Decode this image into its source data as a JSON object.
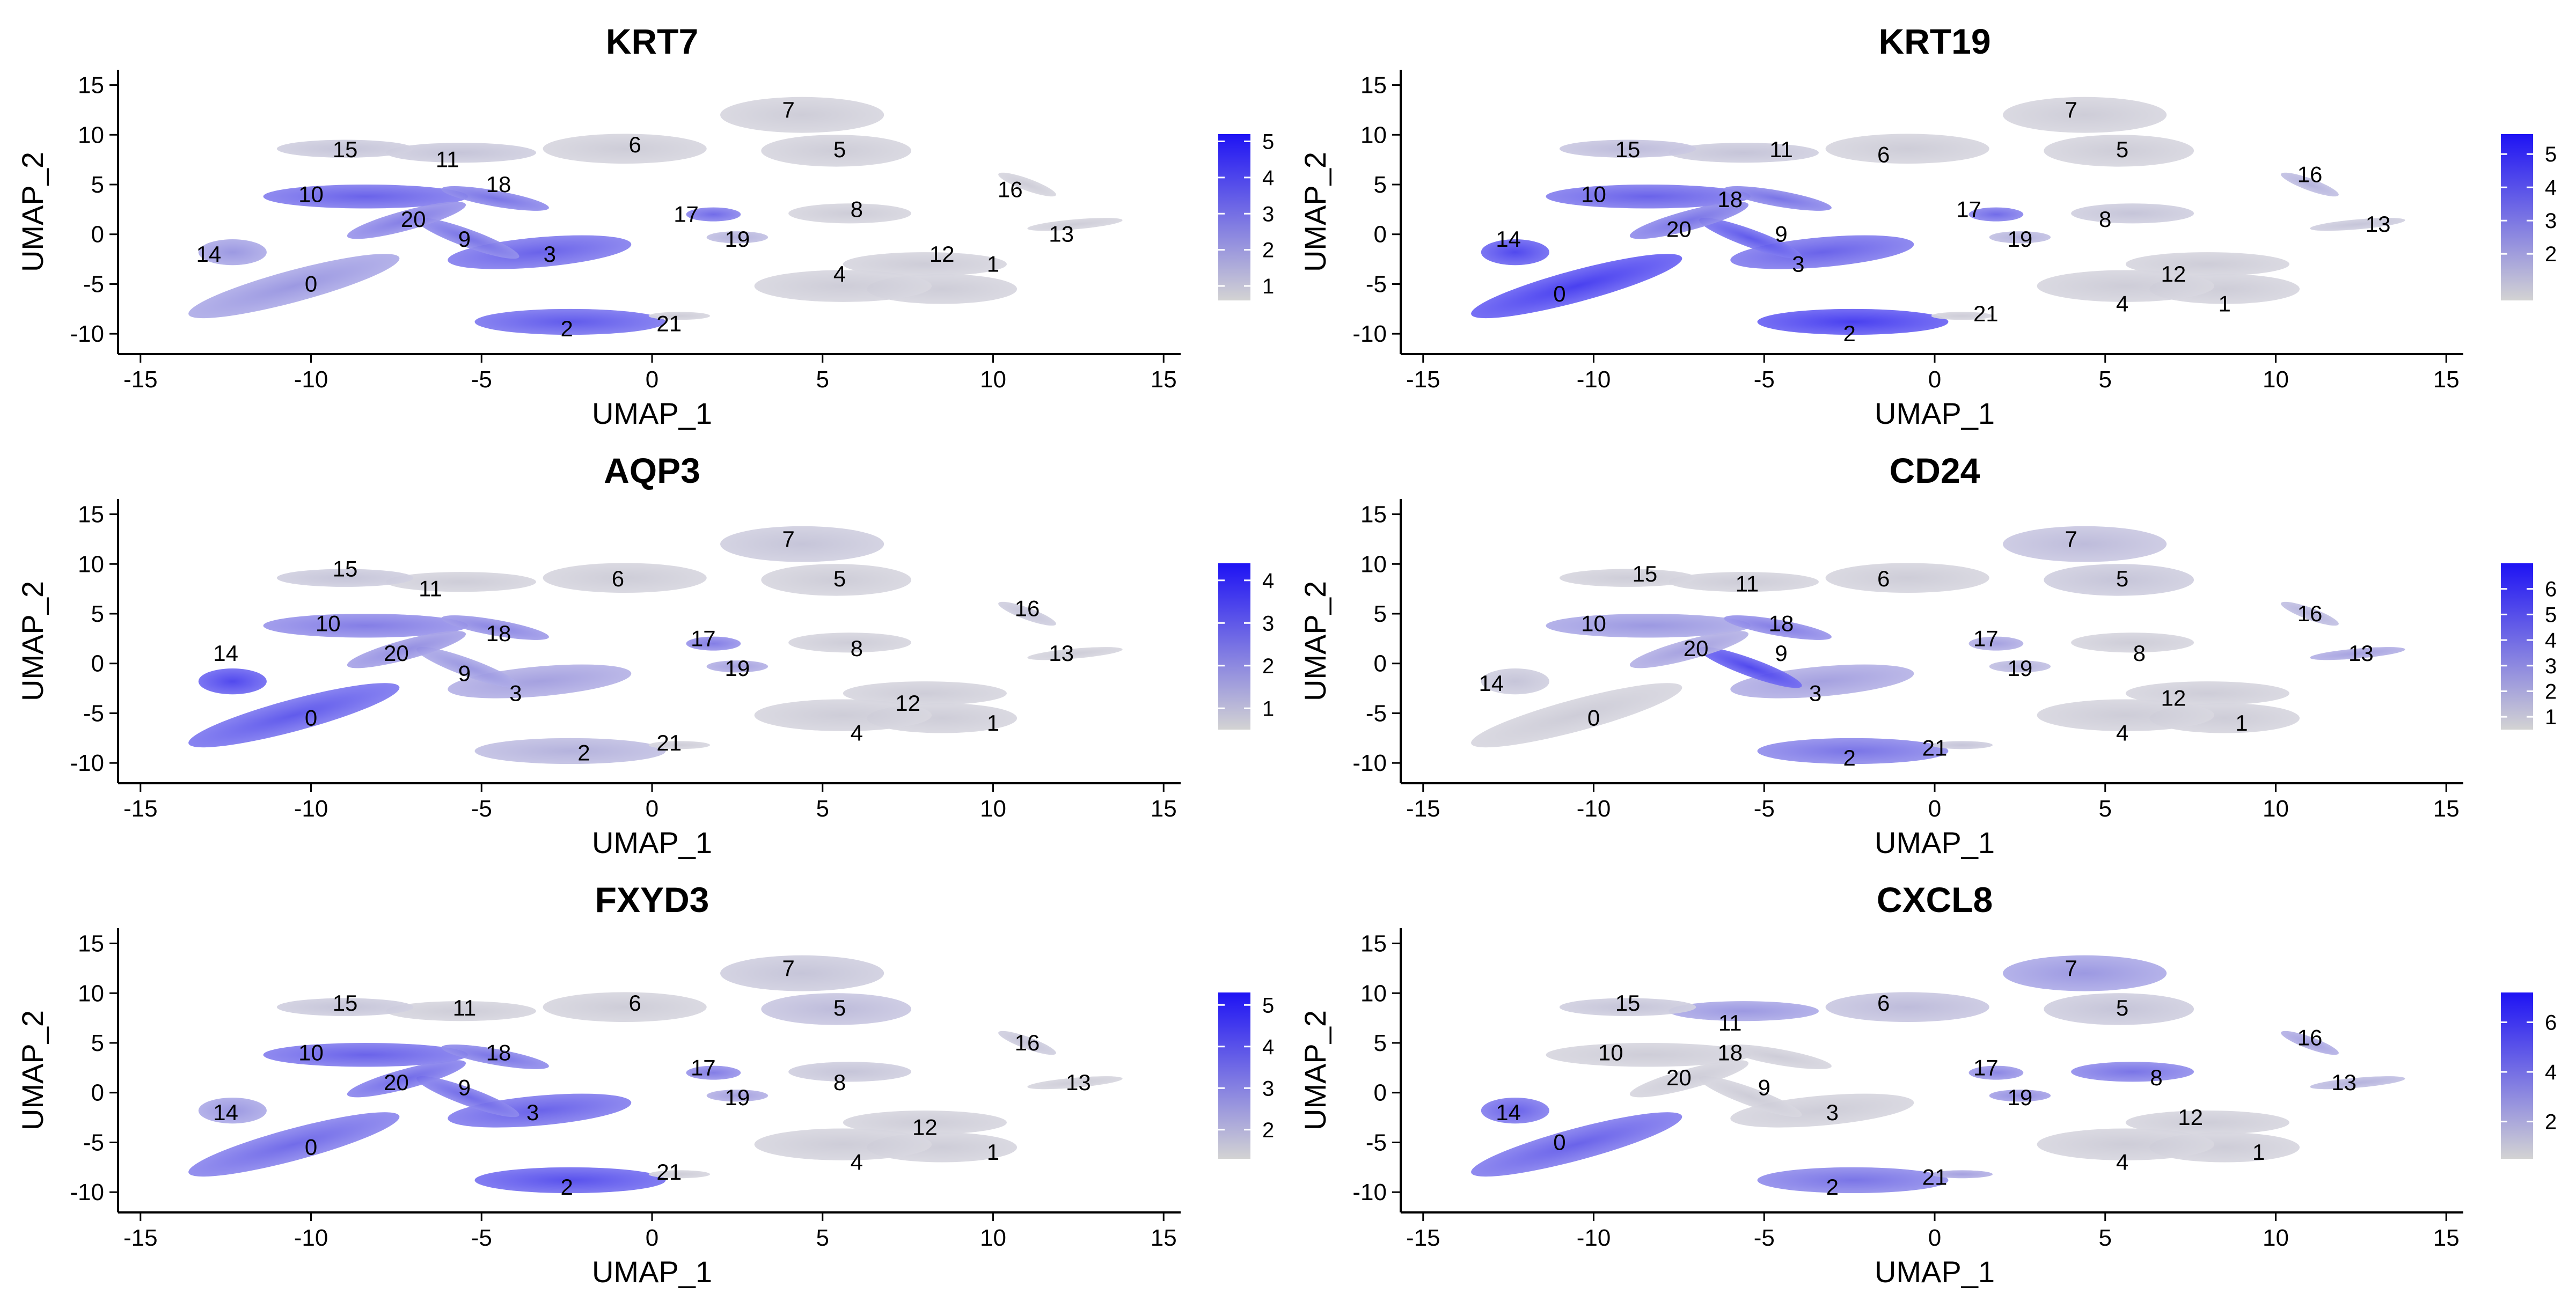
{
  "colors": {
    "low": "#d3d3d3",
    "high": "#1e13f4",
    "axis": "#000000"
  },
  "chart_data": [
    {
      "type": "scatter",
      "title": "KRT7",
      "xlabel": "UMAP_1",
      "ylabel": "UMAP_2",
      "xlim": [
        -15.5,
        15.5
      ],
      "ylim": [
        -11.5,
        16
      ],
      "xticks": [
        -15,
        -10,
        -5,
        0,
        5,
        10,
        15
      ],
      "yticks": [
        -10,
        -5,
        0,
        5,
        10,
        15
      ],
      "colorbar": {
        "min": 0.6,
        "max": 5.2,
        "ticks": [
          1,
          2,
          3,
          4,
          5
        ]
      },
      "clusters": [
        {
          "label": "0",
          "x": -10,
          "y": -5,
          "expr": 0.35
        },
        {
          "label": "1",
          "x": 10,
          "y": -3,
          "expr": 0.05
        },
        {
          "label": "2",
          "x": -2.5,
          "y": -9.5,
          "expr": 0.7
        },
        {
          "label": "3",
          "x": -3,
          "y": -2,
          "expr": 0.65
        },
        {
          "label": "4",
          "x": 5.5,
          "y": -4,
          "expr": 0.05
        },
        {
          "label": "5",
          "x": 5.5,
          "y": 8.5,
          "expr": 0.05
        },
        {
          "label": "6",
          "x": -0.5,
          "y": 9,
          "expr": 0.05
        },
        {
          "label": "7",
          "x": 4,
          "y": 12.5,
          "expr": 0.05
        },
        {
          "label": "8",
          "x": 6,
          "y": 2.5,
          "expr": 0.05
        },
        {
          "label": "9",
          "x": -5.5,
          "y": -0.5,
          "expr": 0.55
        },
        {
          "label": "10",
          "x": -10,
          "y": 4,
          "expr": 0.65
        },
        {
          "label": "11",
          "x": -6,
          "y": 7.5,
          "expr": 0.1
        },
        {
          "label": "12",
          "x": 8.5,
          "y": -2,
          "expr": 0.05
        },
        {
          "label": "13",
          "x": 12,
          "y": 0,
          "expr": 0.05
        },
        {
          "label": "14",
          "x": -13,
          "y": -2,
          "expr": 0.35
        },
        {
          "label": "15",
          "x": -9,
          "y": 8.5,
          "expr": 0.1
        },
        {
          "label": "16",
          "x": 10.5,
          "y": 4.5,
          "expr": 0.05
        },
        {
          "label": "17",
          "x": 1,
          "y": 2,
          "expr": 0.6
        },
        {
          "label": "18",
          "x": -4.5,
          "y": 5,
          "expr": 0.55
        },
        {
          "label": "19",
          "x": 2.5,
          "y": -0.5,
          "expr": 0.2
        },
        {
          "label": "20",
          "x": -7,
          "y": 1.5,
          "expr": 0.5
        },
        {
          "label": "21",
          "x": 0.5,
          "y": -9,
          "expr": 0.05
        }
      ]
    },
    {
      "type": "scatter",
      "title": "KRT19",
      "xlabel": "UMAP_1",
      "ylabel": "UMAP_2",
      "xlim": [
        -15.5,
        15.5
      ],
      "ylim": [
        -11.5,
        16
      ],
      "xticks": [
        -15,
        -10,
        -5,
        0,
        5,
        10,
        15
      ],
      "yticks": [
        -10,
        -5,
        0,
        5,
        10,
        15
      ],
      "colorbar": {
        "min": 0.6,
        "max": 5.6,
        "ticks": [
          2,
          3,
          4,
          5
        ]
      },
      "clusters": [
        {
          "label": "0",
          "x": -11,
          "y": -6,
          "expr": 0.85
        },
        {
          "label": "1",
          "x": 8.5,
          "y": -7,
          "expr": 0.05
        },
        {
          "label": "2",
          "x": -2.5,
          "y": -10,
          "expr": 0.85
        },
        {
          "label": "3",
          "x": -4,
          "y": -3,
          "expr": 0.65
        },
        {
          "label": "4",
          "x": 5.5,
          "y": -7,
          "expr": 0.05
        },
        {
          "label": "5",
          "x": 5.5,
          "y": 8.5,
          "expr": 0.05
        },
        {
          "label": "6",
          "x": -1.5,
          "y": 8,
          "expr": 0.05
        },
        {
          "label": "7",
          "x": 4,
          "y": 12.5,
          "expr": 0.05
        },
        {
          "label": "8",
          "x": 5,
          "y": 1.5,
          "expr": 0.1
        },
        {
          "label": "9",
          "x": -4.5,
          "y": 0,
          "expr": 0.7
        },
        {
          "label": "10",
          "x": -10,
          "y": 4,
          "expr": 0.65
        },
        {
          "label": "11",
          "x": -4.5,
          "y": 8.5,
          "expr": 0.1
        },
        {
          "label": "12",
          "x": 7,
          "y": -4,
          "expr": 0.05
        },
        {
          "label": "13",
          "x": 13,
          "y": 1,
          "expr": 0.1
        },
        {
          "label": "14",
          "x": -12.5,
          "y": -0.5,
          "expr": 0.8
        },
        {
          "label": "15",
          "x": -9,
          "y": 8.5,
          "expr": 0.15
        },
        {
          "label": "16",
          "x": 11,
          "y": 6,
          "expr": 0.2
        },
        {
          "label": "17",
          "x": 1,
          "y": 2.5,
          "expr": 0.6
        },
        {
          "label": "18",
          "x": -6,
          "y": 3.5,
          "expr": 0.55
        },
        {
          "label": "19",
          "x": 2.5,
          "y": -0.5,
          "expr": 0.2
        },
        {
          "label": "20",
          "x": -7.5,
          "y": 0.5,
          "expr": 0.55
        },
        {
          "label": "21",
          "x": 1.5,
          "y": -8,
          "expr": 0.05
        }
      ]
    },
    {
      "type": "scatter",
      "title": "AQP3",
      "xlabel": "UMAP_1",
      "ylabel": "UMAP_2",
      "xlim": [
        -15.5,
        15.5
      ],
      "ylim": [
        -11.5,
        16
      ],
      "xticks": [
        -15,
        -10,
        -5,
        0,
        5,
        10,
        15
      ],
      "yticks": [
        -10,
        -5,
        0,
        5,
        10,
        15
      ],
      "colorbar": {
        "min": 0.5,
        "max": 4.4,
        "ticks": [
          1,
          2,
          3,
          4
        ]
      },
      "clusters": [
        {
          "label": "0",
          "x": -10,
          "y": -5.5,
          "expr": 0.7
        },
        {
          "label": "1",
          "x": 10,
          "y": -6,
          "expr": 0.05
        },
        {
          "label": "2",
          "x": -2,
          "y": -9,
          "expr": 0.2
        },
        {
          "label": "3",
          "x": -4,
          "y": -3,
          "expr": 0.3
        },
        {
          "label": "4",
          "x": 6,
          "y": -7,
          "expr": 0.05
        },
        {
          "label": "5",
          "x": 5.5,
          "y": 8.5,
          "expr": 0.05
        },
        {
          "label": "6",
          "x": -1,
          "y": 8.5,
          "expr": 0.05
        },
        {
          "label": "7",
          "x": 4,
          "y": 12.5,
          "expr": 0.1
        },
        {
          "label": "8",
          "x": 6,
          "y": 1.5,
          "expr": 0.05
        },
        {
          "label": "9",
          "x": -5.5,
          "y": -1,
          "expr": 0.35
        },
        {
          "label": "10",
          "x": -9.5,
          "y": 4,
          "expr": 0.5
        },
        {
          "label": "11",
          "x": -6.5,
          "y": 7.5,
          "expr": 0.05
        },
        {
          "label": "12",
          "x": 7.5,
          "y": -4,
          "expr": 0.05
        },
        {
          "label": "13",
          "x": 12,
          "y": 1,
          "expr": 0.05
        },
        {
          "label": "14",
          "x": -12.5,
          "y": 1,
          "expr": 0.8
        },
        {
          "label": "15",
          "x": -9,
          "y": 9.5,
          "expr": 0.1
        },
        {
          "label": "16",
          "x": 11,
          "y": 5.5,
          "expr": 0.1
        },
        {
          "label": "17",
          "x": 1.5,
          "y": 2.5,
          "expr": 0.5
        },
        {
          "label": "18",
          "x": -4.5,
          "y": 3,
          "expr": 0.45
        },
        {
          "label": "19",
          "x": 2.5,
          "y": -0.5,
          "expr": 0.3
        },
        {
          "label": "20",
          "x": -7.5,
          "y": 1,
          "expr": 0.4
        },
        {
          "label": "21",
          "x": 0.5,
          "y": -8,
          "expr": 0.05
        }
      ]
    },
    {
      "type": "scatter",
      "title": "CD24",
      "xlabel": "UMAP_1",
      "ylabel": "UMAP_2",
      "xlim": [
        -15.5,
        15.5
      ],
      "ylim": [
        -11.5,
        16
      ],
      "xticks": [
        -15,
        -10,
        -5,
        0,
        5,
        10,
        15
      ],
      "yticks": [
        -10,
        -5,
        0,
        5,
        10,
        15
      ],
      "colorbar": {
        "min": 0.5,
        "max": 7.0,
        "ticks": [
          1,
          2,
          3,
          4,
          5,
          6
        ]
      },
      "clusters": [
        {
          "label": "0",
          "x": -10,
          "y": -5.5,
          "expr": 0.05
        },
        {
          "label": "1",
          "x": 9,
          "y": -6,
          "expr": 0.05
        },
        {
          "label": "2",
          "x": -2.5,
          "y": -9.5,
          "expr": 0.55
        },
        {
          "label": "3",
          "x": -3.5,
          "y": -3,
          "expr": 0.3
        },
        {
          "label": "4",
          "x": 5.5,
          "y": -7,
          "expr": 0.05
        },
        {
          "label": "5",
          "x": 5.5,
          "y": 8.5,
          "expr": 0.1
        },
        {
          "label": "6",
          "x": -1.5,
          "y": 8.5,
          "expr": 0.05
        },
        {
          "label": "7",
          "x": 4,
          "y": 12.5,
          "expr": 0.15
        },
        {
          "label": "8",
          "x": 6,
          "y": 1,
          "expr": 0.05
        },
        {
          "label": "9",
          "x": -4.5,
          "y": 1,
          "expr": 0.8
        },
        {
          "label": "10",
          "x": -10,
          "y": 4,
          "expr": 0.35
        },
        {
          "label": "11",
          "x": -5.5,
          "y": 8,
          "expr": 0.05
        },
        {
          "label": "12",
          "x": 7,
          "y": -3.5,
          "expr": 0.05
        },
        {
          "label": "13",
          "x": 12.5,
          "y": 1,
          "expr": 0.3
        },
        {
          "label": "14",
          "x": -13,
          "y": -2,
          "expr": 0.1
        },
        {
          "label": "15",
          "x": -8.5,
          "y": 9,
          "expr": 0.05
        },
        {
          "label": "16",
          "x": 11,
          "y": 5,
          "expr": 0.2
        },
        {
          "label": "17",
          "x": 1.5,
          "y": 2.5,
          "expr": 0.3
        },
        {
          "label": "18",
          "x": -4.5,
          "y": 4,
          "expr": 0.5
        },
        {
          "label": "19",
          "x": 2.5,
          "y": -0.5,
          "expr": 0.2
        },
        {
          "label": "20",
          "x": -7,
          "y": 1.5,
          "expr": 0.3
        },
        {
          "label": "21",
          "x": 0,
          "y": -8.5,
          "expr": 0.1
        }
      ]
    },
    {
      "type": "scatter",
      "title": "FXYD3",
      "xlabel": "UMAP_1",
      "ylabel": "UMAP_2",
      "xlim": [
        -15.5,
        15.5
      ],
      "ylim": [
        -11.5,
        16
      ],
      "xticks": [
        -15,
        -10,
        -5,
        0,
        5,
        10,
        15
      ],
      "yticks": [
        -10,
        -5,
        0,
        5,
        10,
        15
      ],
      "colorbar": {
        "min": 1.3,
        "max": 5.3,
        "ticks": [
          2,
          3,
          4,
          5
        ]
      },
      "clusters": [
        {
          "label": "0",
          "x": -10,
          "y": -5.5,
          "expr": 0.6
        },
        {
          "label": "1",
          "x": 10,
          "y": -6,
          "expr": 0.05
        },
        {
          "label": "2",
          "x": -2.5,
          "y": -9.5,
          "expr": 0.75
        },
        {
          "label": "3",
          "x": -3.5,
          "y": -2,
          "expr": 0.65
        },
        {
          "label": "4",
          "x": 6,
          "y": -7,
          "expr": 0.05
        },
        {
          "label": "5",
          "x": 5.5,
          "y": 8.5,
          "expr": 0.15
        },
        {
          "label": "6",
          "x": -0.5,
          "y": 9,
          "expr": 0.05
        },
        {
          "label": "7",
          "x": 4,
          "y": 12.5,
          "expr": 0.1
        },
        {
          "label": "8",
          "x": 5.5,
          "y": 1,
          "expr": 0.1
        },
        {
          "label": "9",
          "x": -5.5,
          "y": 0.5,
          "expr": 0.6
        },
        {
          "label": "10",
          "x": -10,
          "y": 4,
          "expr": 0.65
        },
        {
          "label": "11",
          "x": -5.5,
          "y": 8.5,
          "expr": 0.05
        },
        {
          "label": "12",
          "x": 8,
          "y": -3.5,
          "expr": 0.05
        },
        {
          "label": "13",
          "x": 12.5,
          "y": 1,
          "expr": 0.05
        },
        {
          "label": "14",
          "x": -12.5,
          "y": -2,
          "expr": 0.35
        },
        {
          "label": "15",
          "x": -9,
          "y": 9,
          "expr": 0.1
        },
        {
          "label": "16",
          "x": 11,
          "y": 5,
          "expr": 0.1
        },
        {
          "label": "17",
          "x": 1.5,
          "y": 2.5,
          "expr": 0.5
        },
        {
          "label": "18",
          "x": -4.5,
          "y": 4,
          "expr": 0.55
        },
        {
          "label": "19",
          "x": 2.5,
          "y": -0.5,
          "expr": 0.3
        },
        {
          "label": "20",
          "x": -7.5,
          "y": 1,
          "expr": 0.6
        },
        {
          "label": "21",
          "x": 0.5,
          "y": -8,
          "expr": 0.05
        }
      ]
    },
    {
      "type": "scatter",
      "title": "CXCL8",
      "xlabel": "UMAP_1",
      "ylabel": "UMAP_2",
      "xlim": [
        -15.5,
        15.5
      ],
      "ylim": [
        -11.5,
        16
      ],
      "xticks": [
        -15,
        -10,
        -5,
        0,
        5,
        10,
        15
      ],
      "yticks": [
        -10,
        -5,
        0,
        5,
        10,
        15
      ],
      "colorbar": {
        "min": 0.5,
        "max": 7.2,
        "ticks": [
          2,
          4,
          6
        ]
      },
      "clusters": [
        {
          "label": "0",
          "x": -11,
          "y": -5,
          "expr": 0.65
        },
        {
          "label": "1",
          "x": 9.5,
          "y": -6,
          "expr": 0.05
        },
        {
          "label": "2",
          "x": -3,
          "y": -9.5,
          "expr": 0.55
        },
        {
          "label": "3",
          "x": -3,
          "y": -2,
          "expr": 0.05
        },
        {
          "label": "4",
          "x": 5.5,
          "y": -7,
          "expr": 0.05
        },
        {
          "label": "5",
          "x": 5.5,
          "y": 8.5,
          "expr": 0.1
        },
        {
          "label": "6",
          "x": -1.5,
          "y": 9,
          "expr": 0.15
        },
        {
          "label": "7",
          "x": 4,
          "y": 12.5,
          "expr": 0.35
        },
        {
          "label": "8",
          "x": 6.5,
          "y": 1.5,
          "expr": 0.55
        },
        {
          "label": "9",
          "x": -5,
          "y": 0.5,
          "expr": 0.05
        },
        {
          "label": "10",
          "x": -9.5,
          "y": 4,
          "expr": 0.05
        },
        {
          "label": "11",
          "x": -6,
          "y": 7,
          "expr": 0.35
        },
        {
          "label": "12",
          "x": 7.5,
          "y": -2.5,
          "expr": 0.05
        },
        {
          "label": "13",
          "x": 12,
          "y": 1,
          "expr": 0.2
        },
        {
          "label": "14",
          "x": -12.5,
          "y": -2,
          "expr": 0.65
        },
        {
          "label": "15",
          "x": -9,
          "y": 9,
          "expr": 0.1
        },
        {
          "label": "16",
          "x": 11,
          "y": 5.5,
          "expr": 0.3
        },
        {
          "label": "17",
          "x": 1.5,
          "y": 2.5,
          "expr": 0.45
        },
        {
          "label": "18",
          "x": -6,
          "y": 4,
          "expr": 0.05
        },
        {
          "label": "19",
          "x": 2.5,
          "y": -0.5,
          "expr": 0.4
        },
        {
          "label": "20",
          "x": -7.5,
          "y": 1.5,
          "expr": 0.05
        },
        {
          "label": "21",
          "x": 0,
          "y": -8.5,
          "expr": 0.3
        }
      ]
    }
  ]
}
